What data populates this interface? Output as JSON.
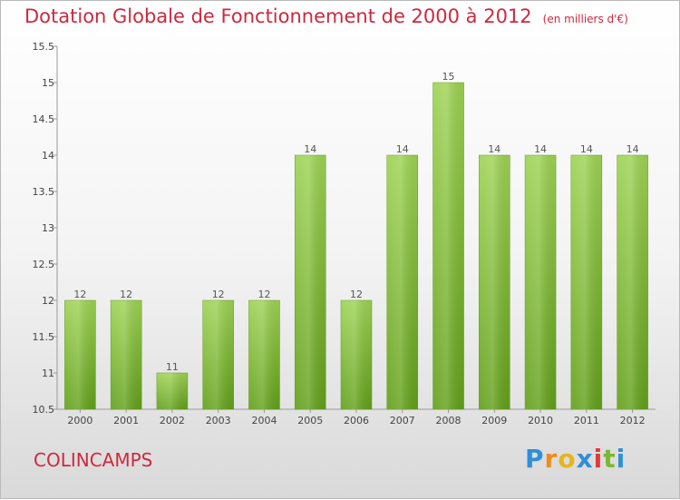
{
  "chart_data": {
    "type": "bar",
    "title": "Dotation Globale de Fonctionnement de 2000 à 2012",
    "unit": "(en milliers d'€)",
    "categories": [
      "2000",
      "2001",
      "2002",
      "2003",
      "2004",
      "2005",
      "2006",
      "2007",
      "2008",
      "2009",
      "2010",
      "2011",
      "2012"
    ],
    "values": [
      12,
      12,
      11,
      12,
      12,
      14,
      12,
      14,
      15,
      14,
      14,
      14,
      14
    ],
    "data_labels": [
      "12",
      "12",
      "11",
      "12",
      "12",
      "14",
      "12",
      "14",
      "15",
      "14",
      "14",
      "14",
      "14"
    ],
    "yticks": [
      "10.5",
      "11",
      "11.5",
      "12",
      "12.5",
      "13",
      "13.5",
      "14",
      "14.5",
      "15",
      "15.5"
    ],
    "ylim": [
      10.5,
      15.5
    ],
    "grid": false,
    "bar_color": "#7cb82f"
  },
  "place_name": "COLINCAMPS",
  "logo": {
    "letters": [
      "P",
      "r",
      "o",
      "x",
      "i",
      "t",
      "i"
    ],
    "colors": [
      "#2f8fd8",
      "#f08a1c",
      "#e8b51c",
      "#2f8fd8",
      "#e23a3a",
      "#7cb82f",
      "#2f8fd8"
    ]
  }
}
